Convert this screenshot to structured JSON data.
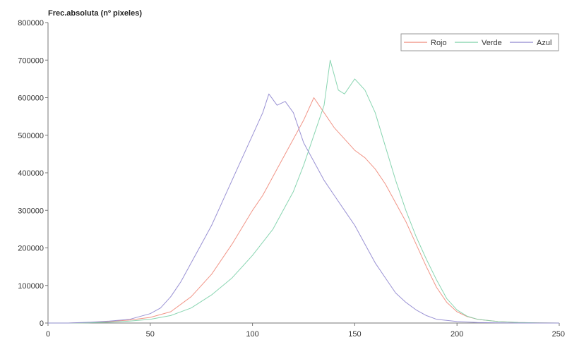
{
  "chart_data": {
    "type": "line",
    "title": "",
    "ylabel": "Frec.absoluta (nº pixeles)",
    "xlabel": "",
    "xlim": [
      0,
      250
    ],
    "ylim": [
      0,
      800000
    ],
    "x_ticks": [
      0,
      50,
      100,
      150,
      200,
      250
    ],
    "x_tick_labels": [
      "0",
      "50",
      "100",
      "150",
      "200",
      "250"
    ],
    "y_ticks": [
      0,
      100000,
      200000,
      300000,
      400000,
      500000,
      600000,
      700000,
      800000
    ],
    "y_tick_labels": [
      "0",
      "100000",
      "200000",
      "300000",
      "400000",
      "500000",
      "600000",
      "700000",
      "800000"
    ],
    "grid": false,
    "legend_position": "top-right",
    "series": [
      {
        "name": "Rojo",
        "color": "#ef8a7a",
        "x": [
          0,
          10,
          20,
          30,
          40,
          50,
          60,
          70,
          80,
          90,
          100,
          105,
          110,
          115,
          120,
          125,
          130,
          135,
          140,
          145,
          150,
          155,
          160,
          165,
          170,
          175,
          180,
          185,
          190,
          195,
          200,
          205,
          210,
          220,
          230,
          240,
          250
        ],
        "values": [
          0,
          0,
          1000,
          4000,
          8000,
          15000,
          30000,
          70000,
          130000,
          210000,
          300000,
          340000,
          390000,
          440000,
          490000,
          540000,
          600000,
          560000,
          520000,
          490000,
          460000,
          440000,
          410000,
          370000,
          320000,
          270000,
          210000,
          150000,
          95000,
          55000,
          30000,
          17000,
          10000,
          4000,
          1500,
          500,
          0
        ]
      },
      {
        "name": "Verde",
        "color": "#7cd0a8",
        "x": [
          0,
          10,
          20,
          30,
          40,
          50,
          60,
          70,
          80,
          90,
          100,
          110,
          115,
          120,
          125,
          130,
          135,
          138,
          142,
          145,
          150,
          155,
          160,
          165,
          170,
          175,
          180,
          185,
          190,
          195,
          200,
          205,
          210,
          220,
          230,
          240,
          250
        ],
        "values": [
          0,
          0,
          500,
          2000,
          5000,
          10000,
          20000,
          40000,
          75000,
          120000,
          180000,
          250000,
          300000,
          350000,
          420000,
          500000,
          580000,
          700000,
          620000,
          610000,
          650000,
          620000,
          560000,
          470000,
          380000,
          300000,
          230000,
          170000,
          115000,
          65000,
          35000,
          18000,
          10000,
          4000,
          1500,
          500,
          0
        ]
      },
      {
        "name": "Azul",
        "color": "#8f86cf",
        "x": [
          0,
          10,
          20,
          30,
          40,
          50,
          55,
          60,
          65,
          70,
          75,
          80,
          85,
          90,
          95,
          100,
          105,
          108,
          112,
          116,
          120,
          125,
          130,
          135,
          140,
          145,
          150,
          155,
          160,
          165,
          170,
          175,
          180,
          185,
          190,
          200,
          210,
          220,
          230,
          240,
          250
        ],
        "values": [
          0,
          0,
          2000,
          5000,
          10000,
          25000,
          40000,
          70000,
          110000,
          160000,
          210000,
          260000,
          320000,
          380000,
          440000,
          500000,
          560000,
          610000,
          580000,
          590000,
          560000,
          480000,
          430000,
          380000,
          340000,
          300000,
          260000,
          210000,
          160000,
          120000,
          80000,
          55000,
          35000,
          20000,
          10000,
          4000,
          1500,
          500,
          0,
          0,
          0
        ]
      }
    ]
  }
}
